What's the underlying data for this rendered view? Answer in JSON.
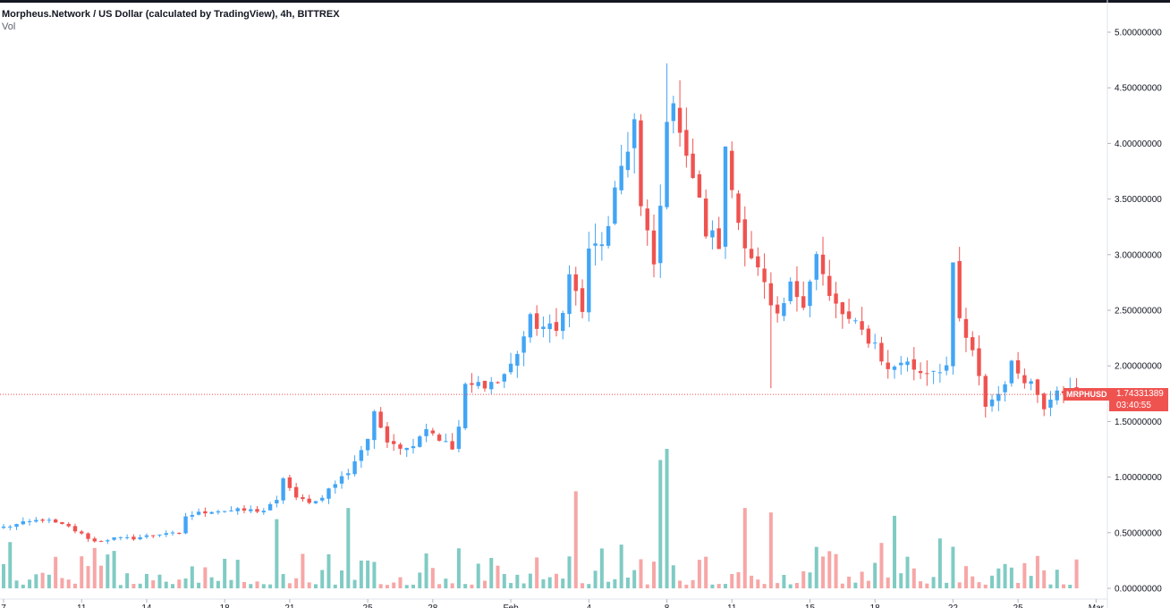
{
  "legend": {
    "title": "Morpheus.Network / US Dollar (calculated by TradingView), 4h, BITTREX",
    "volume_label": "Vol"
  },
  "price_tag": {
    "symbol": "MRPHUSD",
    "price": "1.74331389",
    "countdown": "03:40:55",
    "color": "#ef5350"
  },
  "colors": {
    "up": "#42a5f5",
    "down": "#ef5350",
    "vol_up": "#80cbc4",
    "vol_down": "#f7a6a6",
    "axis_text": "#131722",
    "last_price_line": "#ef5350"
  },
  "chart_data": {
    "type": "candlestick",
    "title": "Morpheus.Network / US Dollar (calculated by TradingView), 4h, BITTREX",
    "y_axis": {
      "ticks": [
        "5.00000000",
        "4.50000000",
        "4.00000000",
        "3.50000000",
        "3.00000000",
        "2.50000000",
        "2.00000000",
        "1.50000000",
        "1.00000000",
        "0.50000000",
        "0.00000000"
      ],
      "range": [
        0,
        5.0
      ],
      "position": "right"
    },
    "x_axis": {
      "ticks": [
        {
          "label": "7",
          "index": 0
        },
        {
          "label": "11",
          "index": 12
        },
        {
          "label": "14",
          "index": 22
        },
        {
          "label": "18",
          "index": 34
        },
        {
          "label": "21",
          "index": 44
        },
        {
          "label": "25",
          "index": 56
        },
        {
          "label": "28",
          "index": 66
        },
        {
          "label": "Feb",
          "index": 78
        },
        {
          "label": "4",
          "index": 90
        },
        {
          "label": "8",
          "index": 102
        },
        {
          "label": "11",
          "index": 112
        },
        {
          "label": "15",
          "index": 124
        },
        {
          "label": "18",
          "index": 134
        },
        {
          "label": "22",
          "index": 146
        },
        {
          "label": "25",
          "index": 156
        },
        {
          "label": "Mar",
          "index": 168
        }
      ]
    },
    "last_price": 1.74331389,
    "series": [
      {
        "name": "MRPHUSD",
        "type": "candlestick",
        "keypoints": [
          [
            0,
            0.55
          ],
          [
            6,
            0.62
          ],
          [
            10,
            0.55
          ],
          [
            14,
            0.42
          ],
          [
            17,
            0.45
          ],
          [
            20,
            0.45
          ],
          [
            25,
            0.5
          ],
          [
            27,
            0.48
          ],
          [
            28,
            0.65
          ],
          [
            32,
            0.7
          ],
          [
            40,
            0.7
          ],
          [
            42,
            0.78
          ],
          [
            43,
            1.0
          ],
          [
            45,
            0.8
          ],
          [
            48,
            0.78
          ],
          [
            53,
            1.05
          ],
          [
            56,
            1.35
          ],
          [
            57,
            1.55
          ],
          [
            59,
            1.35
          ],
          [
            62,
            1.25
          ],
          [
            65,
            1.45
          ],
          [
            67,
            1.35
          ],
          [
            69,
            1.25
          ],
          [
            70,
            1.45
          ],
          [
            71,
            1.8
          ],
          [
            74,
            1.85
          ],
          [
            76,
            1.85
          ],
          [
            78,
            2.0
          ],
          [
            81,
            2.4
          ],
          [
            85,
            2.3
          ],
          [
            87,
            2.8
          ],
          [
            89,
            2.5
          ],
          [
            90,
            3.0
          ],
          [
            93,
            3.2
          ],
          [
            95,
            3.8
          ],
          [
            97,
            4.2
          ],
          [
            98,
            3.4
          ],
          [
            100,
            2.9
          ],
          [
            101,
            3.4
          ],
          [
            102,
            4.3
          ],
          [
            104,
            4.2
          ],
          [
            106,
            3.7
          ],
          [
            108,
            3.2
          ],
          [
            110,
            3.1
          ],
          [
            111,
            3.9
          ],
          [
            113,
            3.3
          ],
          [
            115,
            3.0
          ],
          [
            117,
            2.7
          ],
          [
            118,
            2.5
          ],
          [
            119,
            2.4
          ],
          [
            121,
            2.7
          ],
          [
            123,
            2.6
          ],
          [
            125,
            3.0
          ],
          [
            127,
            2.6
          ],
          [
            130,
            2.4
          ],
          [
            134,
            2.2
          ],
          [
            136,
            1.95
          ],
          [
            138,
            2.05
          ],
          [
            141,
            1.95
          ],
          [
            145,
            2.0
          ],
          [
            146,
            2.85
          ],
          [
            147,
            2.4
          ],
          [
            149,
            2.1
          ],
          [
            151,
            1.65
          ],
          [
            153,
            1.75
          ],
          [
            155,
            2.0
          ],
          [
            158,
            1.85
          ],
          [
            160,
            1.65
          ],
          [
            162,
            1.82
          ],
          [
            165,
            1.74
          ]
        ]
      },
      {
        "name": "Vol",
        "type": "volume",
        "range": [
          0,
          1.25
        ]
      }
    ]
  }
}
